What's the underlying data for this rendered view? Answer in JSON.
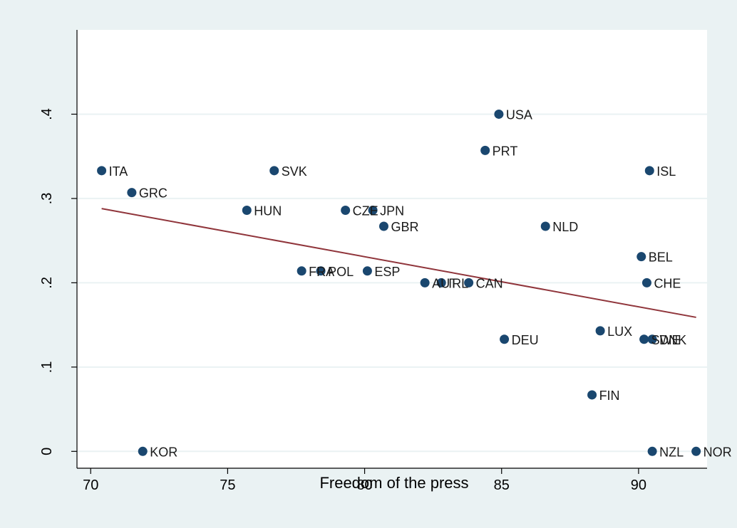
{
  "chart_data": {
    "type": "scatter",
    "title": "",
    "xlabel": "Freedom of the press",
    "ylabel": "",
    "xlim": [
      69.5,
      92.5
    ],
    "ylim": [
      -0.02,
      0.5
    ],
    "x_ticks": [
      70,
      75,
      80,
      85,
      90
    ],
    "x_tick_labels": [
      "70",
      "75",
      "80",
      "85",
      "90"
    ],
    "y_ticks": [
      0,
      0.1,
      0.2,
      0.3,
      0.4
    ],
    "y_tick_labels": [
      "0",
      ".1",
      ".2",
      ".3",
      ".4"
    ],
    "grid": "horizontal",
    "points": [
      {
        "label": "ITA",
        "x": 70.4,
        "y": 0.333
      },
      {
        "label": "GRC",
        "x": 71.5,
        "y": 0.307
      },
      {
        "label": "KOR",
        "x": 71.9,
        "y": 0.0
      },
      {
        "label": "HUN",
        "x": 75.7,
        "y": 0.286
      },
      {
        "label": "SVK",
        "x": 76.7,
        "y": 0.333
      },
      {
        "label": "FRA",
        "x": 77.7,
        "y": 0.214
      },
      {
        "label": "POL",
        "x": 78.4,
        "y": 0.214
      },
      {
        "label": "CZE",
        "x": 79.3,
        "y": 0.286
      },
      {
        "label": "JPN",
        "x": 80.3,
        "y": 0.286
      },
      {
        "label": "ESP",
        "x": 80.1,
        "y": 0.214
      },
      {
        "label": "GBR",
        "x": 80.7,
        "y": 0.267
      },
      {
        "label": "AUT",
        "x": 82.2,
        "y": 0.2
      },
      {
        "label": "IRL",
        "x": 82.8,
        "y": 0.2
      },
      {
        "label": "CAN",
        "x": 83.8,
        "y": 0.2
      },
      {
        "label": "PRT",
        "x": 84.4,
        "y": 0.357
      },
      {
        "label": "USA",
        "x": 84.9,
        "y": 0.4
      },
      {
        "label": "DEU",
        "x": 85.1,
        "y": 0.133
      },
      {
        "label": "NLD",
        "x": 86.6,
        "y": 0.267
      },
      {
        "label": "FIN",
        "x": 88.3,
        "y": 0.067
      },
      {
        "label": "LUX",
        "x": 88.6,
        "y": 0.143
      },
      {
        "label": "BEL",
        "x": 90.1,
        "y": 0.231
      },
      {
        "label": "CHE",
        "x": 90.3,
        "y": 0.2
      },
      {
        "label": "SWE",
        "x": 90.2,
        "y": 0.133
      },
      {
        "label": "DNK",
        "x": 90.5,
        "y": 0.133
      },
      {
        "label": "ISL",
        "x": 90.4,
        "y": 0.333
      },
      {
        "label": "NZL",
        "x": 90.5,
        "y": 0.0
      },
      {
        "label": "NOR",
        "x": 92.1,
        "y": 0.0
      }
    ],
    "fit_line": {
      "x": [
        70.4,
        92.1
      ],
      "y": [
        0.288,
        0.159
      ]
    },
    "colors": {
      "background": "#eaf2f3",
      "plot_background": "#ffffff",
      "gridline": "#eaf2f3",
      "marker": "#1a476f",
      "fit_line": "#90353b"
    }
  }
}
